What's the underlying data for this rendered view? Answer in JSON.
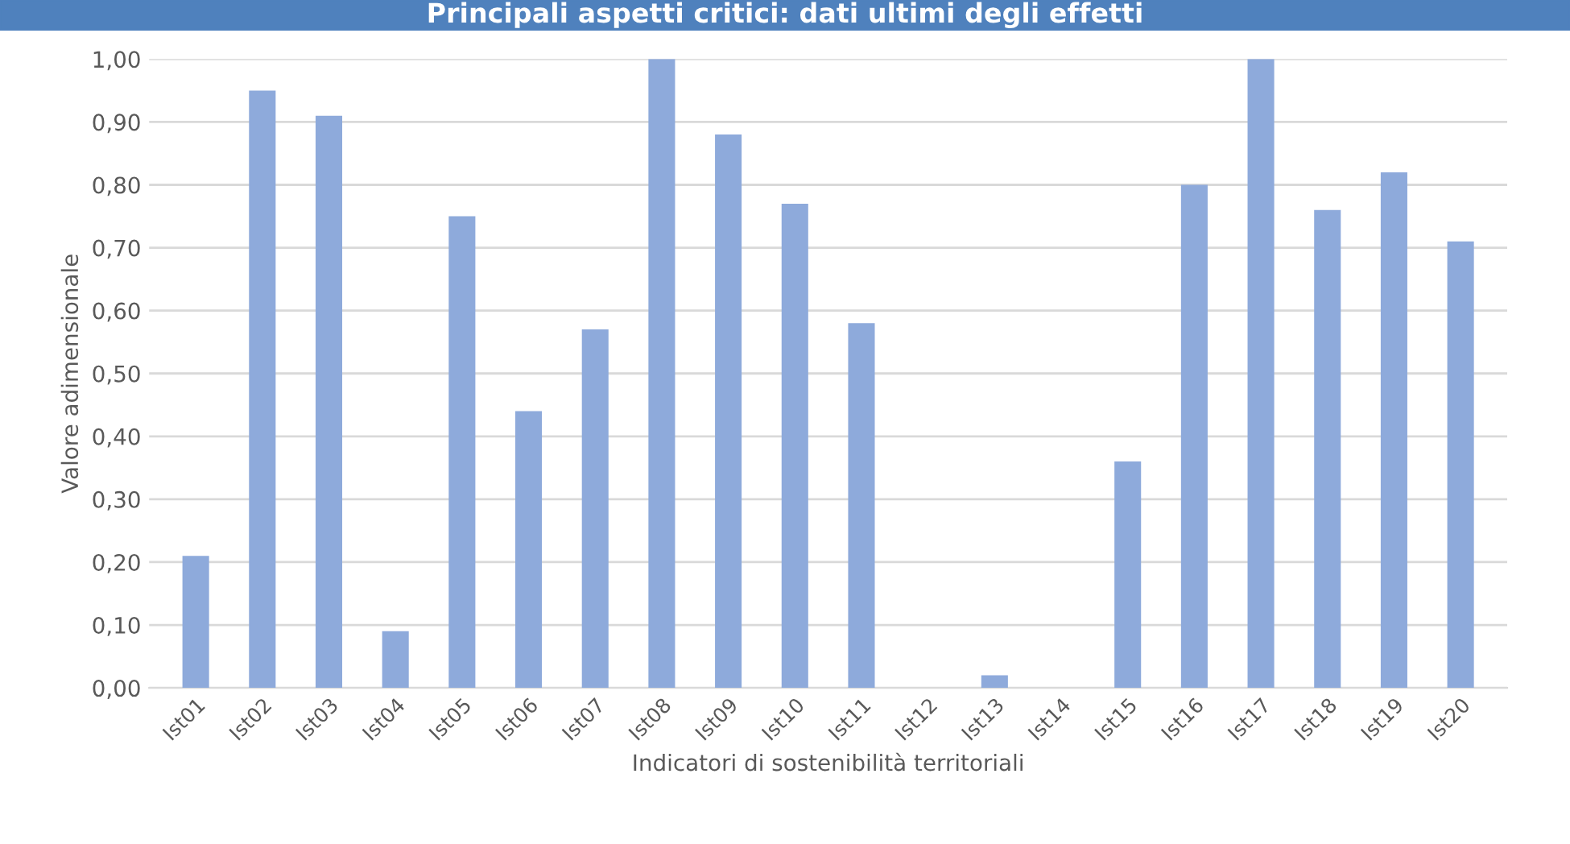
{
  "chart_data": {
    "type": "bar",
    "title": "Principali aspetti critici: dati ultimi degli effetti",
    "xlabel": "Indicatori di sostenibilità territoriali",
    "ylabel": "Valore adimensionale",
    "categories": [
      "Ist01",
      "Ist02",
      "Ist03",
      "Ist04",
      "Ist05",
      "Ist06",
      "Ist07",
      "Ist08",
      "Ist09",
      "Ist10",
      "Ist11",
      "Ist12",
      "Ist13",
      "Ist14",
      "Ist15",
      "Ist16",
      "Ist17",
      "Ist18",
      "Ist19",
      "Ist20"
    ],
    "values": [
      0.21,
      0.95,
      0.91,
      0.09,
      0.75,
      0.44,
      0.57,
      1.0,
      0.88,
      0.77,
      0.58,
      0.0,
      0.02,
      0.0,
      0.36,
      0.8,
      1.0,
      0.76,
      0.82,
      0.71
    ],
    "color": "#8eaadb",
    "ylim": [
      0,
      1.0
    ],
    "yticks": [
      {
        "value": 0,
        "label": "0,00"
      },
      {
        "value": 0.1,
        "label": "0,10"
      },
      {
        "value": 0.2,
        "label": "0,20"
      },
      {
        "value": 0.3,
        "label": "0,30"
      },
      {
        "value": 0.4,
        "label": "0,40"
      },
      {
        "value": 0.5,
        "label": "0,50"
      },
      {
        "value": 0.6,
        "label": "0,60"
      },
      {
        "value": 0.7,
        "label": "0,70"
      },
      {
        "value": 0.8,
        "label": "0,80"
      },
      {
        "value": 0.9,
        "label": "0,90"
      },
      {
        "value": 1.0,
        "label": "1,00"
      }
    ],
    "grid": "y"
  }
}
